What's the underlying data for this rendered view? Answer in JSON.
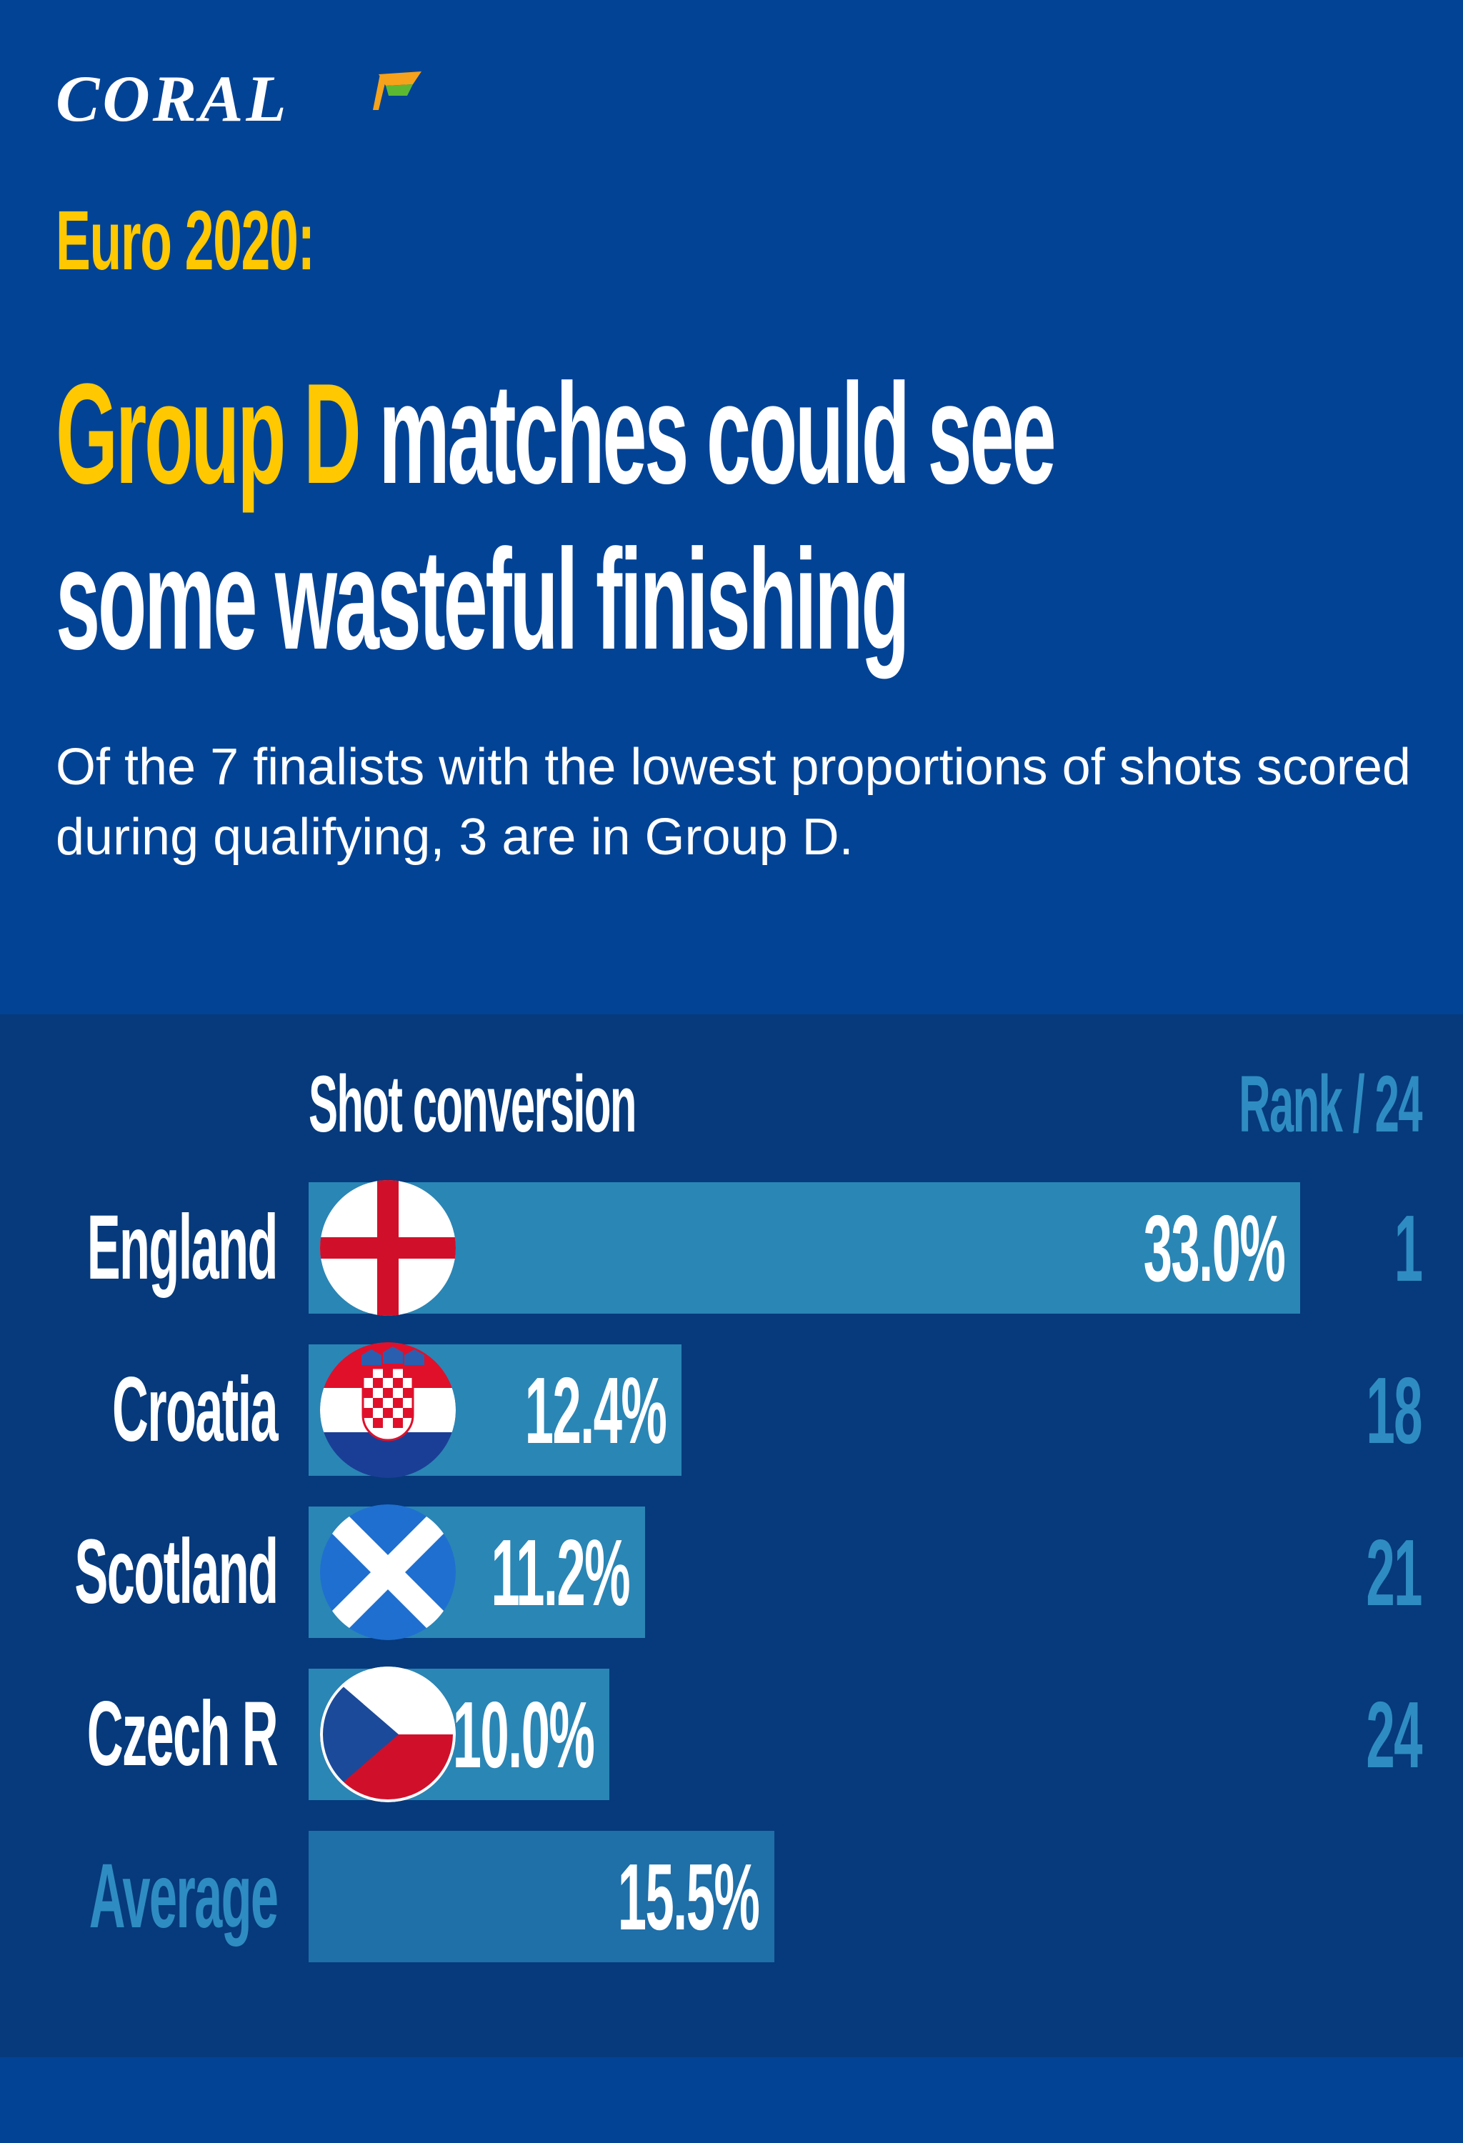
{
  "brand": {
    "name": "CORAL",
    "colors": {
      "background": "#034396",
      "panel": "#063a7c",
      "accent": "#ffc800",
      "bar": "#2a86b5",
      "muted_text": "#2f8cc2"
    }
  },
  "header": {
    "kicker": "Euro 2020:",
    "headline_highlight": "Group D",
    "headline_line1_rest": " matches could see",
    "headline_line2": "some wasteful finishing",
    "subtitle": "Of the 7 finalists with the lowest proportions of shots scored during qualifying, 3 are in Group D."
  },
  "chart_data": {
    "type": "bar",
    "orientation": "horizontal",
    "title": "Shot conversion",
    "rank_header": "Rank / 24",
    "unit": "%",
    "xlim": [
      0,
      33.0
    ],
    "grid": false,
    "rows": [
      {
        "category": "England",
        "value": 33.0,
        "label": "33.0%",
        "rank": "1",
        "flag": "england-flag-icon"
      },
      {
        "category": "Croatia",
        "value": 12.4,
        "label": "12.4%",
        "rank": "18",
        "flag": "croatia-flag-icon"
      },
      {
        "category": "Scotland",
        "value": 11.2,
        "label": "11.2%",
        "rank": "21",
        "flag": "scotland-flag-icon"
      },
      {
        "category": "Czech R",
        "value": 10.0,
        "label": "10.0%",
        "rank": "24",
        "flag": "czech-flag-icon"
      },
      {
        "category": "Average",
        "value": 15.5,
        "label": "15.5%",
        "rank": "",
        "flag": ""
      }
    ]
  }
}
